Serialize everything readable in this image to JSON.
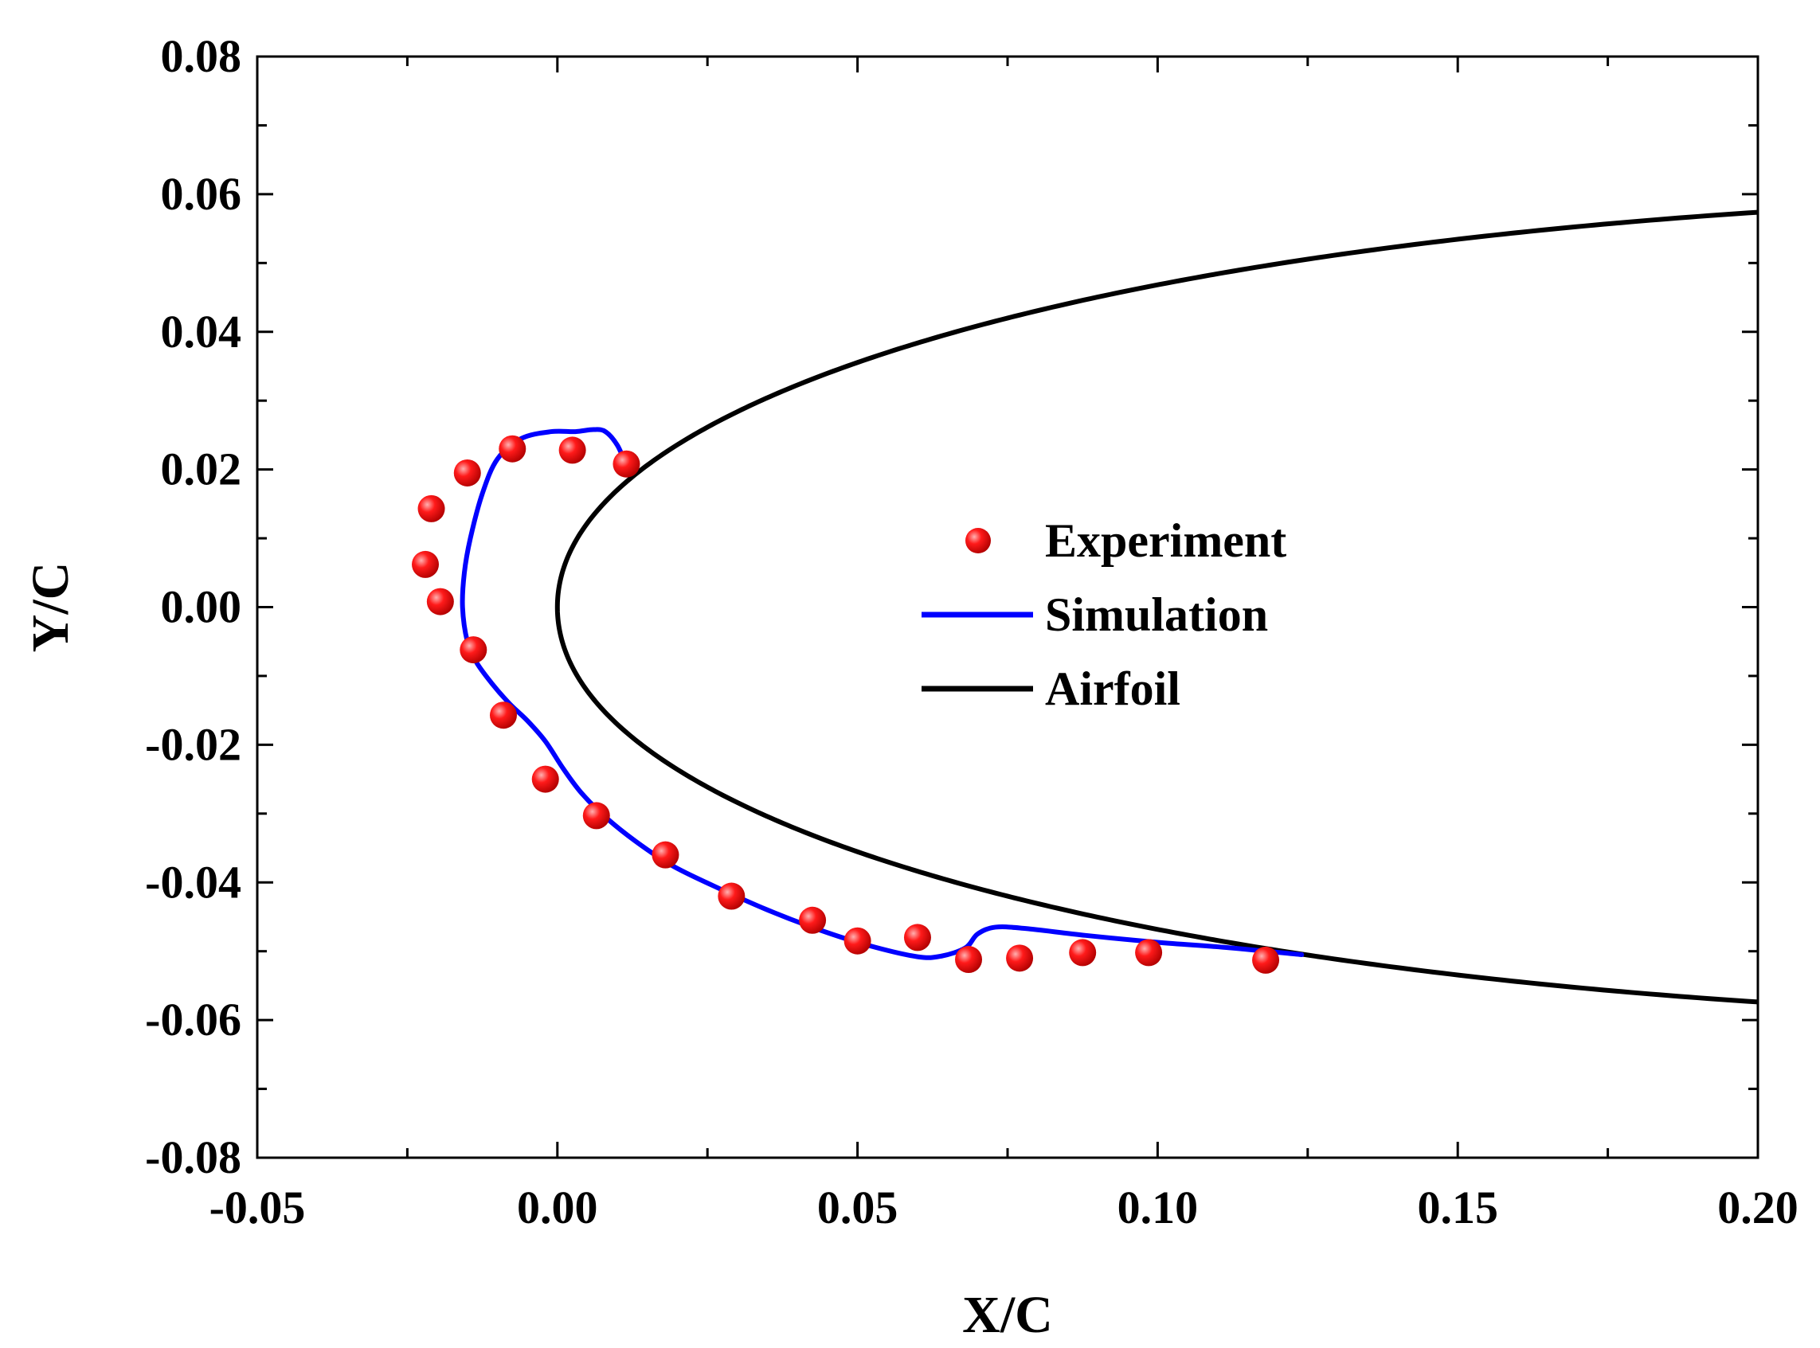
{
  "chart_data": {
    "type": "scatter",
    "xlabel": "X/C",
    "ylabel": "Y/C",
    "xlim": [
      -0.05,
      0.2
    ],
    "ylim": [
      -0.08,
      0.08
    ],
    "x_ticks": [
      "-0.05",
      "0.00",
      "0.05",
      "0.10",
      "0.15",
      "0.20"
    ],
    "y_ticks": [
      "-0.08",
      "-0.06",
      "-0.04",
      "-0.02",
      "0.00",
      "0.02",
      "0.04",
      "0.06",
      "0.08"
    ],
    "legend_position": "center-right",
    "colors": {
      "experiment": "#ff0000",
      "simulation": "#0000ff",
      "airfoil": "#000000"
    },
    "series": [
      {
        "name": "Experiment",
        "kind": "scatter",
        "points": [
          [
            -0.0075,
            0.023
          ],
          [
            0.0025,
            0.0228
          ],
          [
            0.0115,
            0.0208
          ],
          [
            -0.015,
            0.0195
          ],
          [
            -0.021,
            0.0143
          ],
          [
            -0.022,
            0.0062
          ],
          [
            -0.0195,
            0.0008
          ],
          [
            -0.014,
            -0.0062
          ],
          [
            -0.009,
            -0.0157
          ],
          [
            -0.002,
            -0.025
          ],
          [
            0.0065,
            -0.0303
          ],
          [
            0.018,
            -0.036
          ],
          [
            0.029,
            -0.042
          ],
          [
            0.0425,
            -0.0455
          ],
          [
            0.05,
            -0.0485
          ],
          [
            0.06,
            -0.048
          ],
          [
            0.0685,
            -0.0512
          ],
          [
            0.077,
            -0.051
          ],
          [
            0.0875,
            -0.0502
          ],
          [
            0.0985,
            -0.0502
          ],
          [
            0.118,
            -0.0513
          ]
        ]
      },
      {
        "name": "Simulation",
        "kind": "line",
        "points": [
          [
            0.0115,
            0.0205
          ],
          [
            0.01,
            0.0235
          ],
          [
            0.008,
            0.0255
          ],
          [
            0.006,
            0.0258
          ],
          [
            0.003,
            0.0255
          ],
          [
            -0.001,
            0.0255
          ],
          [
            -0.006,
            0.0245
          ],
          [
            -0.01,
            0.0215
          ],
          [
            -0.0125,
            0.0165
          ],
          [
            -0.0145,
            0.01
          ],
          [
            -0.0155,
            0.005
          ],
          [
            -0.0158,
            0.0
          ],
          [
            -0.015,
            -0.005
          ],
          [
            -0.0135,
            -0.008
          ],
          [
            -0.011,
            -0.011
          ],
          [
            -0.008,
            -0.014
          ],
          [
            -0.005,
            -0.0165
          ],
          [
            -0.002,
            -0.0195
          ],
          [
            0.001,
            -0.0235
          ],
          [
            0.004,
            -0.027
          ],
          [
            0.008,
            -0.0305
          ],
          [
            0.013,
            -0.034
          ],
          [
            0.019,
            -0.0375
          ],
          [
            0.026,
            -0.0405
          ],
          [
            0.035,
            -0.044
          ],
          [
            0.044,
            -0.047
          ],
          [
            0.052,
            -0.0492
          ],
          [
            0.06,
            -0.0508
          ],
          [
            0.064,
            -0.0507
          ],
          [
            0.068,
            -0.0495
          ],
          [
            0.07,
            -0.0475
          ],
          [
            0.073,
            -0.0465
          ],
          [
            0.078,
            -0.0467
          ],
          [
            0.088,
            -0.0477
          ],
          [
            0.1,
            -0.0487
          ],
          [
            0.112,
            -0.0495
          ],
          [
            0.124,
            -0.0505
          ]
        ]
      },
      {
        "name": "Airfoil",
        "kind": "line",
        "curve": "NACA 0012 profile",
        "thickness_ratio": 0.12,
        "x_range": [
          0.0,
          0.2
        ]
      }
    ]
  }
}
